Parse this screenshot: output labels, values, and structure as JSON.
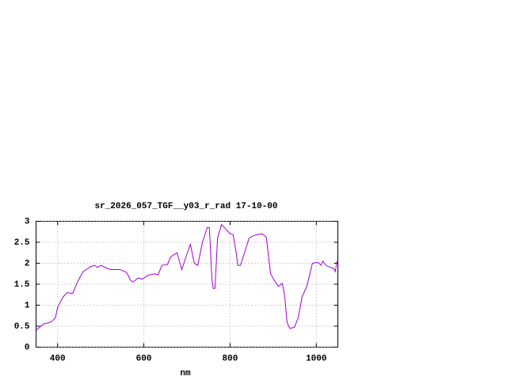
{
  "chart_data": {
    "type": "line",
    "title": "sr_2026_057_TGF__y03_r_rad 17-10-00",
    "xlabel": "nm",
    "series": [
      {
        "color": "#a000d0",
        "x": [
          350,
          367,
          385,
          395,
          400,
          413,
          422,
          435,
          446,
          459,
          477,
          486,
          492,
          501,
          514,
          523,
          545,
          560,
          569,
          574,
          587,
          596,
          611,
          626,
          633,
          642,
          655,
          662,
          677,
          688,
          701,
          708,
          717,
          725,
          736,
          747,
          752,
          758,
          761,
          765,
          771,
          780,
          787,
          798,
          807,
          815,
          818,
          824,
          835,
          844,
          853,
          862,
          875,
          884,
          894,
          905,
          912,
          921,
          927,
          932,
          938,
          949,
          958,
          967,
          978,
          991,
          1004,
          1011,
          1015,
          1022,
          1033,
          1040,
          1044,
          1048
        ],
        "values": [
          0.4,
          0.55,
          0.6,
          0.7,
          0.95,
          1.2,
          1.3,
          1.28,
          1.55,
          1.8,
          1.92,
          1.95,
          1.9,
          1.95,
          1.88,
          1.85,
          1.85,
          1.78,
          1.6,
          1.55,
          1.65,
          1.62,
          1.72,
          1.75,
          1.72,
          1.95,
          1.97,
          2.15,
          2.25,
          1.85,
          2.25,
          2.45,
          2.0,
          1.95,
          2.5,
          2.85,
          2.85,
          1.6,
          1.4,
          1.4,
          2.6,
          2.92,
          2.85,
          2.72,
          2.68,
          2.2,
          1.95,
          1.95,
          2.3,
          2.6,
          2.65,
          2.68,
          2.7,
          2.62,
          1.75,
          1.55,
          1.45,
          1.52,
          1.2,
          0.6,
          0.45,
          0.47,
          0.7,
          1.2,
          1.45,
          2.0,
          2.02,
          1.95,
          2.05,
          1.95,
          1.9,
          1.88,
          1.8,
          2.05
        ]
      }
    ],
    "xlim": [
      350,
      1050
    ],
    "xticks": [
      400,
      600,
      800,
      1000
    ],
    "ylim": [
      0,
      3
    ],
    "yticks": [
      0,
      0.5,
      1,
      1.5,
      2,
      2.5,
      3
    ],
    "grid": true
  }
}
